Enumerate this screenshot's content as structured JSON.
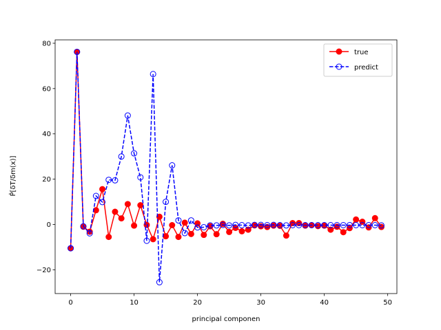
{
  "chart_data": {
    "type": "line",
    "xlabel": "principal componen",
    "ylabel": "P̂[δT/δm(x)]",
    "xlim": [
      -2.45,
      51.45
    ],
    "ylim": [
      -30.5,
      81.5
    ],
    "xticks": [
      0,
      10,
      20,
      30,
      40,
      50
    ],
    "yticks": [
      -20,
      0,
      20,
      40,
      60,
      80
    ],
    "grid": false,
    "legend_position": "top-right",
    "x": [
      0,
      1,
      2,
      3,
      4,
      5,
      6,
      7,
      8,
      9,
      10,
      11,
      12,
      13,
      14,
      15,
      16,
      17,
      18,
      19,
      20,
      21,
      22,
      23,
      24,
      25,
      26,
      27,
      28,
      29,
      30,
      31,
      32,
      33,
      34,
      35,
      36,
      37,
      38,
      39,
      40,
      41,
      42,
      43,
      44,
      45,
      46,
      47,
      48,
      49
    ],
    "series": [
      {
        "name": "true",
        "color": "#ff0000",
        "style": "solid",
        "marker": "filled-circle",
        "values": [
          -10.5,
          76.2,
          -1.0,
          -3.2,
          6.3,
          15.6,
          -5.5,
          5.6,
          2.7,
          9.0,
          -0.5,
          8.5,
          -0.2,
          -6.5,
          3.4,
          -5.2,
          -0.3,
          -5.5,
          0.8,
          -4.2,
          0.5,
          -4.6,
          -0.8,
          -4.3,
          0.3,
          -3.3,
          -1.5,
          -3.0,
          -2.3,
          -0.4,
          -0.8,
          -1.1,
          -0.5,
          -0.6,
          -4.9,
          0.6,
          0.6,
          -0.5,
          -0.3,
          -0.7,
          -0.5,
          -2.3,
          -1.0,
          -3.4,
          -1.6,
          2.2,
          1.2,
          -1.3,
          2.8,
          -1.1
        ]
      },
      {
        "name": "predict",
        "color": "#0000ff",
        "style": "dashed",
        "marker": "open-circle",
        "values": [
          -10.5,
          76.2,
          -0.8,
          -3.9,
          12.6,
          9.9,
          19.7,
          19.5,
          30.0,
          48.1,
          31.4,
          20.8,
          -7.2,
          66.4,
          -25.5,
          10.0,
          26.1,
          1.8,
          -3.8,
          1.8,
          -1.3,
          -1.2,
          -0.4,
          -0.4,
          -0.2,
          -0.4,
          -0.2,
          -0.3,
          -0.4,
          -0.2,
          -0.2,
          -0.3,
          -0.2,
          -0.3,
          -0.4,
          -0.3,
          -0.3,
          -0.3,
          -0.3,
          -0.3,
          -0.3,
          -0.3,
          -0.3,
          -0.3,
          -0.3,
          -0.3,
          -0.3,
          -0.3,
          -0.3,
          -0.4
        ]
      }
    ]
  }
}
